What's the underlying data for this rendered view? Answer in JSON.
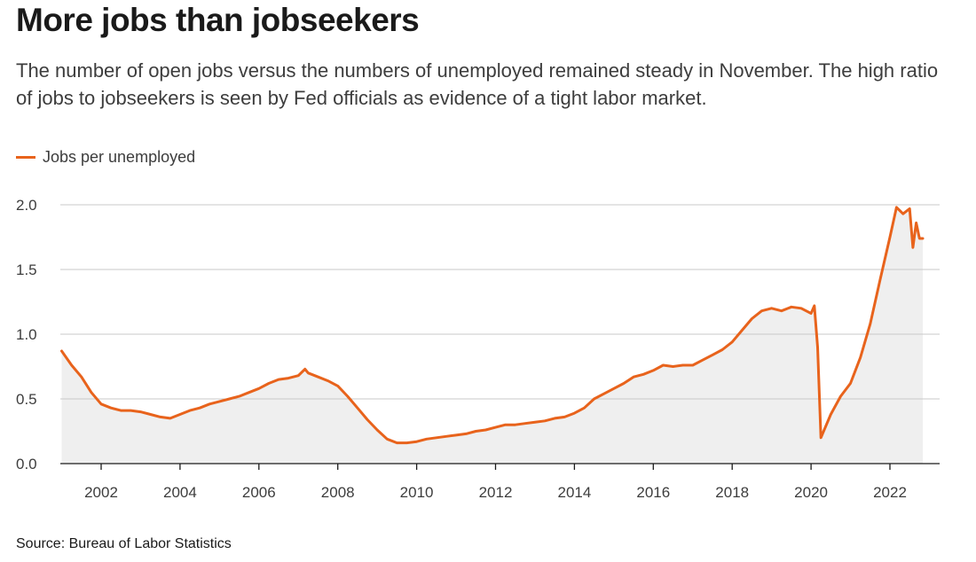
{
  "colors": {
    "line": "#e8631c",
    "area": "#efefef",
    "grid": "#c8c8c8",
    "axis": "#1a1a1a"
  },
  "chart_data": {
    "type": "area",
    "title": "More jobs than jobseekers",
    "subtitle": "The number of open jobs versus the numbers of unemployed remained steady in November. The high ratio of jobs to jobseekers is seen by Fed officials as evidence of a tight labor market.",
    "source": "Source: Bureau of Labor Statistics",
    "legend": {
      "position": "top-left",
      "entries": [
        "Jobs per unemployed"
      ]
    },
    "xlim": [
      "2001-01",
      "2022-12"
    ],
    "ylim": [
      0,
      2.0
    ],
    "x_ticks": [
      {
        "value": "2002-01",
        "label": "2002"
      },
      {
        "value": "2004-01",
        "label": "2004"
      },
      {
        "value": "2006-01",
        "label": "2006"
      },
      {
        "value": "2008-01",
        "label": "2008"
      },
      {
        "value": "2010-01",
        "label": "2010"
      },
      {
        "value": "2012-01",
        "label": "2012"
      },
      {
        "value": "2014-01",
        "label": "2014"
      },
      {
        "value": "2016-01",
        "label": "2016"
      },
      {
        "value": "2018-01",
        "label": "2018"
      },
      {
        "value": "2020-01",
        "label": "2020"
      },
      {
        "value": "2022-01",
        "label": "2022"
      }
    ],
    "y_ticks": [
      {
        "value": 0.0,
        "label": "0.0"
      },
      {
        "value": 0.5,
        "label": "0.5"
      },
      {
        "value": 1.0,
        "label": "1.0"
      },
      {
        "value": 1.5,
        "label": "1.5"
      },
      {
        "value": 2.0,
        "label": "2.0"
      }
    ],
    "grid": true,
    "series": [
      {
        "name": "Jobs per unemployed",
        "points": [
          [
            "2001-01",
            0.87
          ],
          [
            "2001-04",
            0.76
          ],
          [
            "2001-07",
            0.67
          ],
          [
            "2001-10",
            0.55
          ],
          [
            "2002-01",
            0.46
          ],
          [
            "2002-04",
            0.43
          ],
          [
            "2002-07",
            0.41
          ],
          [
            "2002-10",
            0.41
          ],
          [
            "2003-01",
            0.4
          ],
          [
            "2003-04",
            0.38
          ],
          [
            "2003-07",
            0.36
          ],
          [
            "2003-10",
            0.35
          ],
          [
            "2004-01",
            0.38
          ],
          [
            "2004-04",
            0.41
          ],
          [
            "2004-07",
            0.43
          ],
          [
            "2004-10",
            0.46
          ],
          [
            "2005-01",
            0.48
          ],
          [
            "2005-04",
            0.5
          ],
          [
            "2005-07",
            0.52
          ],
          [
            "2005-10",
            0.55
          ],
          [
            "2006-01",
            0.58
          ],
          [
            "2006-04",
            0.62
          ],
          [
            "2006-07",
            0.65
          ],
          [
            "2006-10",
            0.66
          ],
          [
            "2007-01",
            0.68
          ],
          [
            "2007-03",
            0.73
          ],
          [
            "2007-04",
            0.7
          ],
          [
            "2007-07",
            0.67
          ],
          [
            "2007-10",
            0.64
          ],
          [
            "2008-01",
            0.6
          ],
          [
            "2008-04",
            0.52
          ],
          [
            "2008-07",
            0.43
          ],
          [
            "2008-10",
            0.34
          ],
          [
            "2009-01",
            0.26
          ],
          [
            "2009-04",
            0.19
          ],
          [
            "2009-07",
            0.16
          ],
          [
            "2009-10",
            0.16
          ],
          [
            "2010-01",
            0.17
          ],
          [
            "2010-04",
            0.19
          ],
          [
            "2010-07",
            0.2
          ],
          [
            "2010-10",
            0.21
          ],
          [
            "2011-01",
            0.22
          ],
          [
            "2011-04",
            0.23
          ],
          [
            "2011-07",
            0.25
          ],
          [
            "2011-10",
            0.26
          ],
          [
            "2012-01",
            0.28
          ],
          [
            "2012-04",
            0.3
          ],
          [
            "2012-07",
            0.3
          ],
          [
            "2012-10",
            0.31
          ],
          [
            "2013-01",
            0.32
          ],
          [
            "2013-04",
            0.33
          ],
          [
            "2013-07",
            0.35
          ],
          [
            "2013-10",
            0.36
          ],
          [
            "2014-01",
            0.39
          ],
          [
            "2014-04",
            0.43
          ],
          [
            "2014-07",
            0.5
          ],
          [
            "2014-10",
            0.54
          ],
          [
            "2015-01",
            0.58
          ],
          [
            "2015-04",
            0.62
          ],
          [
            "2015-07",
            0.67
          ],
          [
            "2015-10",
            0.69
          ],
          [
            "2016-01",
            0.72
          ],
          [
            "2016-04",
            0.76
          ],
          [
            "2016-07",
            0.75
          ],
          [
            "2016-10",
            0.76
          ],
          [
            "2017-01",
            0.76
          ],
          [
            "2017-04",
            0.8
          ],
          [
            "2017-07",
            0.84
          ],
          [
            "2017-10",
            0.88
          ],
          [
            "2018-01",
            0.94
          ],
          [
            "2018-04",
            1.03
          ],
          [
            "2018-07",
            1.12
          ],
          [
            "2018-10",
            1.18
          ],
          [
            "2019-01",
            1.2
          ],
          [
            "2019-04",
            1.18
          ],
          [
            "2019-07",
            1.21
          ],
          [
            "2019-10",
            1.2
          ],
          [
            "2020-01",
            1.16
          ],
          [
            "2020-02",
            1.22
          ],
          [
            "2020-03",
            0.9
          ],
          [
            "2020-04",
            0.2
          ],
          [
            "2020-07",
            0.38
          ],
          [
            "2020-10",
            0.52
          ],
          [
            "2021-01",
            0.62
          ],
          [
            "2021-04",
            0.82
          ],
          [
            "2021-07",
            1.08
          ],
          [
            "2021-10",
            1.42
          ],
          [
            "2022-01",
            1.75
          ],
          [
            "2022-03",
            1.98
          ],
          [
            "2022-05",
            1.93
          ],
          [
            "2022-07",
            1.97
          ],
          [
            "2022-08",
            1.67
          ],
          [
            "2022-09",
            1.86
          ],
          [
            "2022-10",
            1.74
          ],
          [
            "2022-11",
            1.74
          ]
        ]
      }
    ]
  }
}
